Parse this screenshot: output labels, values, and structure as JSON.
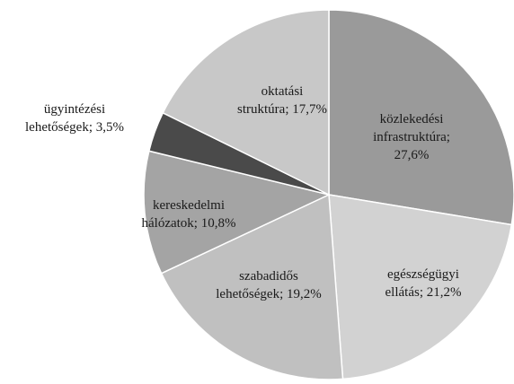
{
  "chart_data": {
    "type": "pie",
    "title": "",
    "slices": [
      {
        "label_lines": [
          "közlekedési",
          "infrastruktúra;",
          "27,6%"
        ],
        "value": 27.6,
        "color": "#9a9a9a"
      },
      {
        "label_lines": [
          "egészségügyi",
          "ellátás; 21,2%"
        ],
        "value": 21.2,
        "color": "#d2d2d2"
      },
      {
        "label_lines": [
          "szabadidős",
          "lehetőségek; 19,2%"
        ],
        "value": 19.2,
        "color": "#c0c0c0"
      },
      {
        "label_lines": [
          "kereskedelmi",
          "hálózatok; 10,8%"
        ],
        "value": 10.8,
        "color": "#a4a4a4"
      },
      {
        "label_lines": [
          "ügyintézési",
          "lehetőségek; 3,5%"
        ],
        "value": 3.5,
        "color": "#4a4a4a"
      },
      {
        "label_lines": [
          "oktatási",
          "struktúra; 17,7%"
        ],
        "value": 17.7,
        "color": "#c8c8c8"
      }
    ]
  }
}
